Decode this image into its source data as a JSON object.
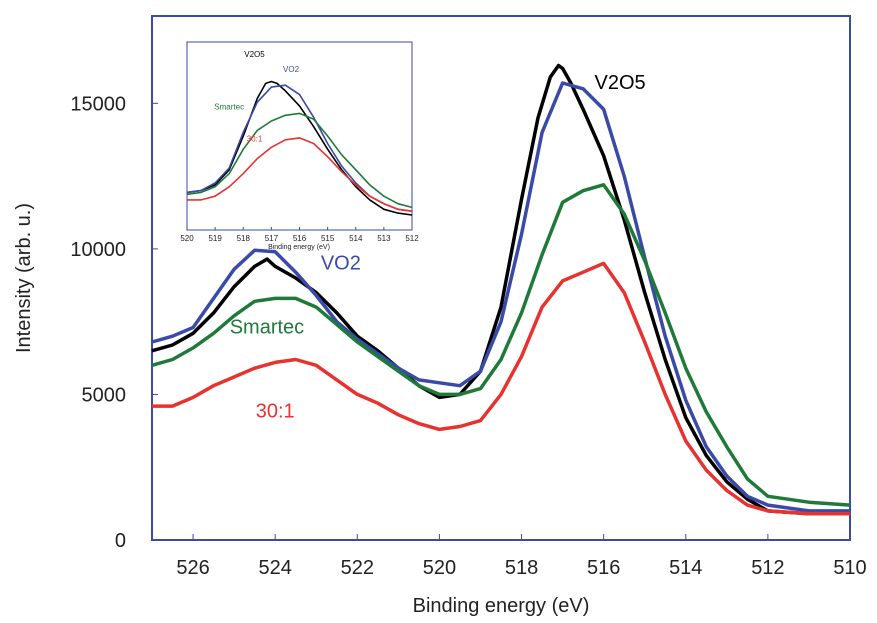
{
  "chart_data": [
    {
      "type": "line",
      "title": "",
      "xlabel": "Binding energy (eV)",
      "ylabel": "Intensity (arb. u.)",
      "xlim": [
        527,
        510
      ],
      "ylim": [
        0,
        18000
      ],
      "x_reversed": true,
      "xticks": [
        526,
        524,
        522,
        520,
        518,
        516,
        514,
        512,
        510
      ],
      "yticks": [
        0,
        5000,
        10000,
        15000
      ],
      "grid": false,
      "series": [
        {
          "name": "V2O5",
          "color": "#000000",
          "x": [
            527,
            526.5,
            526,
            525.5,
            525,
            524.5,
            524.2,
            524,
            523.5,
            523,
            522.5,
            522,
            521.5,
            521,
            520.5,
            520,
            519.5,
            519,
            518.5,
            518,
            517.6,
            517.3,
            517.1,
            517,
            516.8,
            516.5,
            516,
            515.5,
            515,
            514.5,
            514,
            513.5,
            513,
            512.5,
            512,
            511,
            510
          ],
          "y": [
            6500,
            6700,
            7100,
            7800,
            8700,
            9400,
            9650,
            9400,
            9000,
            8500,
            7800,
            7000,
            6500,
            5900,
            5300,
            4900,
            5000,
            5800,
            8000,
            11700,
            14500,
            15900,
            16300,
            16200,
            15700,
            14800,
            13200,
            11000,
            8500,
            6200,
            4200,
            2900,
            2000,
            1400,
            1000,
            900,
            900
          ]
        },
        {
          "name": "VO2",
          "color": "#3a4aa8",
          "x": [
            527,
            526.5,
            526,
            525.5,
            525,
            524.5,
            524,
            523.5,
            523,
            522.5,
            522,
            521.5,
            521,
            520.5,
            520,
            519.5,
            519,
            518.5,
            518,
            517.5,
            517,
            516.5,
            516,
            515.5,
            515,
            514.5,
            514,
            513.5,
            513,
            512.5,
            512,
            511,
            510
          ],
          "y": [
            6800,
            7000,
            7300,
            8300,
            9300,
            9950,
            9900,
            9200,
            8400,
            7500,
            6900,
            6400,
            5900,
            5500,
            5400,
            5300,
            5800,
            7500,
            10500,
            14000,
            15700,
            15500,
            14800,
            12500,
            9700,
            7000,
            4800,
            3200,
            2200,
            1500,
            1200,
            1000,
            1000
          ]
        },
        {
          "name": "Smartec",
          "color": "#1f7a3a",
          "x": [
            527,
            526.5,
            526,
            525.5,
            525,
            524.5,
            524,
            523.5,
            523,
            522.5,
            522,
            521.5,
            521,
            520.5,
            520,
            519.5,
            519,
            518.5,
            518,
            517.5,
            517,
            516.5,
            516,
            515.5,
            515,
            514.5,
            514,
            513.5,
            513,
            512.5,
            512,
            511,
            510
          ],
          "y": [
            6000,
            6200,
            6600,
            7100,
            7700,
            8200,
            8300,
            8300,
            8000,
            7400,
            6800,
            6300,
            5800,
            5300,
            5000,
            5000,
            5200,
            6200,
            7800,
            9800,
            11600,
            12000,
            12200,
            11200,
            9600,
            7800,
            5900,
            4400,
            3200,
            2100,
            1500,
            1300,
            1200
          ]
        },
        {
          "name": "30:1",
          "color": "#e8322f",
          "x": [
            527,
            526.5,
            526,
            525.5,
            525,
            524.5,
            524,
            523.5,
            523,
            522.5,
            522,
            521.5,
            521,
            520.5,
            520,
            519.5,
            519,
            518.5,
            518,
            517.5,
            517,
            516.5,
            516,
            515.5,
            515,
            514.5,
            514,
            513.5,
            513,
            512.5,
            512,
            511,
            510
          ],
          "y": [
            4600,
            4600,
            4900,
            5300,
            5600,
            5900,
            6100,
            6200,
            6000,
            5500,
            5000,
            4700,
            4300,
            4000,
            3800,
            3900,
            4100,
            5000,
            6300,
            8000,
            8900,
            9200,
            9500,
            8500,
            6800,
            5000,
            3400,
            2400,
            1700,
            1200,
            1000,
            900,
            900
          ]
        }
      ],
      "annotations": [
        {
          "text": "V2O5",
          "x": 515.6,
          "y": 15500,
          "color": "#000000"
        },
        {
          "text": "VO2",
          "x": 522.4,
          "y": 9300,
          "color": "#3a4aa8"
        },
        {
          "text": "Smartec",
          "x": 524.2,
          "y": 7100,
          "color": "#1f7a3a"
        },
        {
          "text": "30:1",
          "x": 524.0,
          "y": 4200,
          "color": "#e8322f"
        }
      ]
    },
    {
      "type": "line",
      "title": "",
      "xlabel": "Binding energy (eV)",
      "ylabel": "",
      "xlim": [
        520,
        512
      ],
      "ylim": [
        0,
        10
      ],
      "x_reversed": true,
      "xticks": [
        520,
        519,
        518,
        517,
        516,
        515,
        514,
        513,
        512
      ],
      "yticks": [],
      "series": [
        {
          "name": "V2O5",
          "color": "#000000",
          "x": [
            520,
            519.5,
            519,
            518.5,
            518,
            517.5,
            517.2,
            517,
            516.8,
            516.5,
            516,
            515.5,
            515,
            514.5,
            514,
            513.5,
            513,
            512.5,
            512
          ],
          "y": [
            2.0,
            2.1,
            2.4,
            3.2,
            5.0,
            7.0,
            7.8,
            7.9,
            7.8,
            7.4,
            6.6,
            5.5,
            4.3,
            3.2,
            2.3,
            1.6,
            1.1,
            0.9,
            0.8
          ]
        },
        {
          "name": "VO2",
          "color": "#3a4aa8",
          "x": [
            520,
            519.5,
            519,
            518.5,
            518,
            517.5,
            517,
            516.5,
            516,
            515.5,
            515,
            514.5,
            514,
            513.5,
            513,
            512.5,
            512
          ],
          "y": [
            2.0,
            2.1,
            2.5,
            3.3,
            5.2,
            6.8,
            7.6,
            7.7,
            7.2,
            6.0,
            4.6,
            3.4,
            2.5,
            1.8,
            1.4,
            1.1,
            1.0
          ]
        },
        {
          "name": "Smartec",
          "color": "#1f7a3a",
          "x": [
            520,
            519.5,
            519,
            518.5,
            518,
            517.5,
            517,
            516.5,
            516,
            515.5,
            515,
            514.5,
            514,
            513.5,
            513,
            512.5,
            512
          ],
          "y": [
            1.9,
            2.0,
            2.3,
            3.0,
            4.3,
            5.3,
            5.8,
            6.1,
            6.2,
            5.9,
            5.0,
            4.0,
            3.2,
            2.4,
            1.8,
            1.4,
            1.2
          ]
        },
        {
          "name": "30:1",
          "color": "#e8322f",
          "x": [
            520,
            519.5,
            519,
            518.5,
            518,
            517.5,
            517,
            516.5,
            516,
            515.5,
            515,
            514.5,
            514,
            513.5,
            513,
            512.5,
            512
          ],
          "y": [
            1.6,
            1.6,
            1.8,
            2.3,
            3.0,
            3.8,
            4.4,
            4.8,
            4.9,
            4.6,
            3.9,
            3.1,
            2.4,
            1.8,
            1.4,
            1.1,
            1.0
          ]
        }
      ],
      "annotations": [
        {
          "text": "V2O5",
          "x": 517.6,
          "y": 9.2,
          "color": "#000000"
        },
        {
          "text": "VO2",
          "x": 516.3,
          "y": 8.4,
          "color": "#3a4aa8"
        },
        {
          "text": "Smartec",
          "x": 518.5,
          "y": 6.4,
          "color": "#1f7a3a"
        },
        {
          "text": "30:1",
          "x": 517.6,
          "y": 4.7,
          "color": "#e8322f"
        }
      ]
    }
  ],
  "colors": {
    "frame": "#3a4aa8",
    "text": "#222222"
  }
}
